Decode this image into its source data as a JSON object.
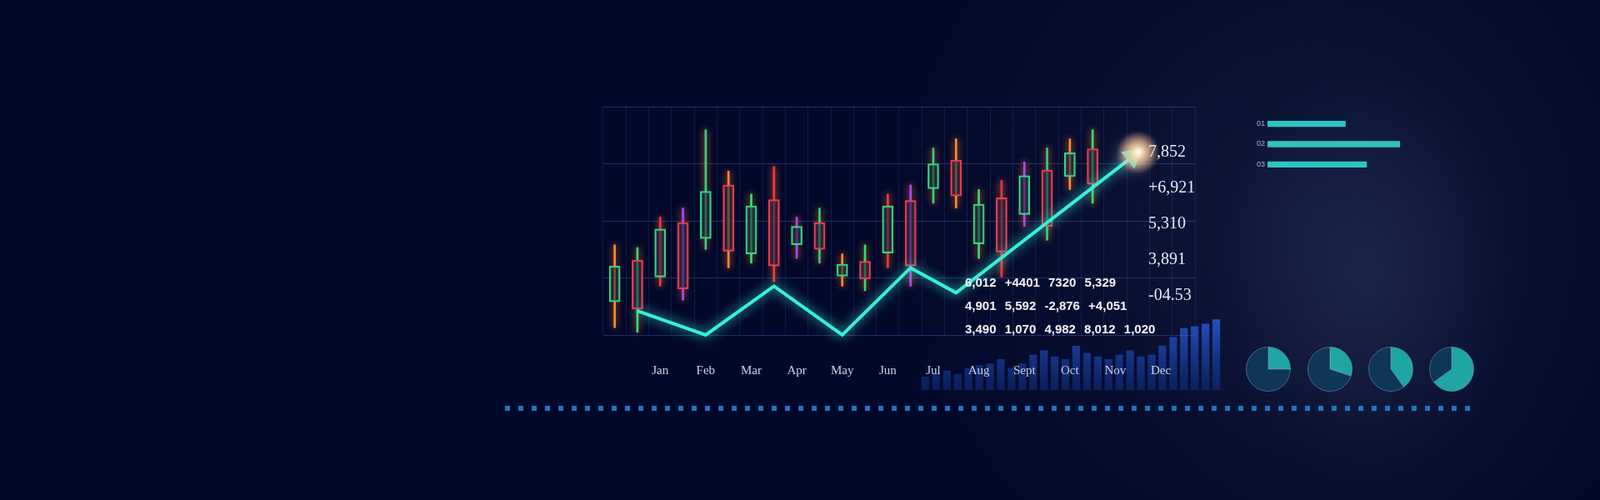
{
  "chart_data": [
    {
      "type": "candlestick",
      "categories": [
        null,
        null,
        "Jan",
        null,
        "Feb",
        null,
        "Mar",
        null,
        "Apr",
        null,
        "May",
        null,
        "Jun",
        null,
        "Jul",
        null,
        "Aug",
        null,
        "Sept",
        null,
        "Oct",
        null,
        "Nov",
        null,
        "Dec",
        null
      ],
      "open": [
        14.5,
        32.7,
        25.4,
        49.2,
        42.3,
        65.7,
        35.5,
        59.3,
        39.5,
        49.2,
        25.8,
        32.3,
        35.9,
        58.9,
        64.1,
        76.6,
        39.9,
        60.1,
        52.8,
        72.2,
        69.4,
        81.5,
        null,
        null,
        null,
        null
      ],
      "high": [
        39.5,
        38.3,
        51.6,
        55.6,
        89.9,
        71.8,
        61.7,
        73.8,
        51.6,
        55.6,
        35.5,
        39.5,
        61.7,
        65.7,
        81.9,
        85.9,
        63.7,
        67.7,
        75.8,
        81.9,
        85.9,
        89.9,
        null,
        null,
        null,
        null
      ],
      "low": [
        3.2,
        1.2,
        21.4,
        15.3,
        37.5,
        29.4,
        31.5,
        23.4,
        33.5,
        31.5,
        21.4,
        19.4,
        29.4,
        21.4,
        57.7,
        55.6,
        33.5,
        25.4,
        47.6,
        41.5,
        63.7,
        57.7,
        null,
        null,
        null,
        null
      ],
      "close": [
        30.2,
        11.3,
        46.4,
        20.2,
        62.9,
        36.7,
        56.5,
        30.2,
        47.6,
        37.5,
        31.0,
        24.6,
        56.5,
        30.2,
        75.0,
        60.9,
        57.3,
        36.3,
        69.8,
        47.6,
        79.8,
        66.1,
        null,
        null,
        null,
        null
      ],
      "series": [
        {
          "type": "line",
          "color": "#35f0d8",
          "marker": "arrow",
          "values": [
            null,
            10.5,
            null,
            null,
            0,
            null,
            null,
            21.4,
            null,
            null,
            0,
            null,
            null,
            29.4,
            null,
            18.5,
            null,
            null,
            null,
            null,
            null,
            null,
            null,
            80,
            null,
            null
          ]
        }
      ],
      "ylim": [
        0,
        100
      ],
      "yticks": [
        0,
        25,
        50,
        75,
        100
      ],
      "grid": true,
      "tick_labels": "x",
      "annotations": {
        "right_column": [
          "7,852",
          "+6,921",
          "5,310",
          "3,891",
          "-04.53"
        ],
        "table_rows": [
          [
            "6,012",
            "+4401",
            "7320",
            "5,329"
          ],
          [
            "4,901",
            "5,592",
            "-2,876",
            "+4,051"
          ],
          [
            "3,490",
            "1,070",
            "4,982",
            "8,012",
            "1,020"
          ]
        ]
      }
    },
    {
      "type": "bar",
      "categories": [
        null,
        null,
        null,
        null,
        null,
        null,
        null,
        null,
        null,
        null,
        null,
        null,
        null,
        null,
        null,
        null,
        null,
        null,
        null,
        null,
        null,
        null,
        null,
        null,
        null,
        null,
        null,
        null
      ],
      "values": [
        15,
        20,
        22,
        18,
        25,
        28,
        30,
        35,
        25,
        30,
        40,
        45,
        38,
        35,
        50,
        42,
        38,
        35,
        40,
        45,
        38,
        40,
        50,
        60,
        70,
        72,
        75,
        80
      ],
      "color": "#2a62e0",
      "ylim": [
        0,
        100
      ],
      "yticks": [
        0,
        50,
        100
      ],
      "grid": false,
      "tick_labels": false
    },
    {
      "type": "bar",
      "orientation": "horizontal",
      "categories": [
        "01",
        "02",
        "03"
      ],
      "values": [
        59,
        100,
        75
      ],
      "color": "#2ec4c0",
      "xlim": [
        0,
        100
      ],
      "xticks": [
        0,
        50,
        100
      ],
      "grid": false,
      "tick_labels": "y"
    },
    {
      "type": "pie",
      "values": [
        25,
        75
      ],
      "colors": [
        "#1fa5a3",
        "#0f3558"
      ]
    },
    {
      "type": "pie",
      "values": [
        30,
        70
      ],
      "colors": [
        "#1fa5a3",
        "#0f3558"
      ]
    },
    {
      "type": "pie",
      "values": [
        40,
        60
      ],
      "colors": [
        "#1fa5a3",
        "#0f3558"
      ]
    },
    {
      "type": "pie",
      "values": [
        65,
        35
      ],
      "colors": [
        "#1fa5a3",
        "#0f3558"
      ]
    }
  ]
}
